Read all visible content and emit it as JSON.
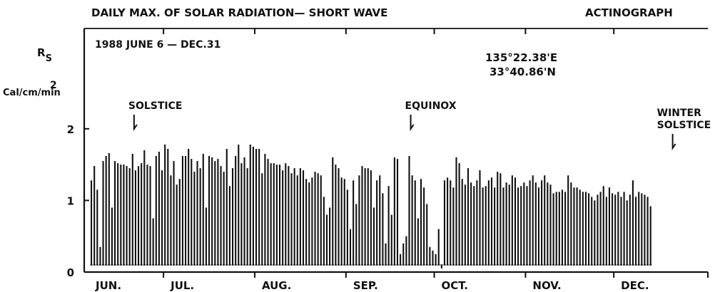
{
  "chart_data": {
    "type": "bar",
    "title": "DAILY MAX. OF SOLAR RADIATION— SHORT WAVE",
    "instrument": "ACTINOGRAPH",
    "period": "1988 JUNE 6 — DEC.31",
    "location": {
      "longitude": "135°22.38'E",
      "latitude": "33°40.86'N"
    },
    "ylabel": {
      "symbol": "R",
      "subscript": "S",
      "unit_main": "Cal/cm",
      "unit_sup": "2",
      "unit_tail": "/min"
    },
    "xlabel": "",
    "ylim": [
      0,
      3.4
    ],
    "yticks": [
      0,
      1,
      2
    ],
    "x_start": "1988-06-06",
    "x_end": "1988-12-31",
    "grid": false,
    "months": [
      {
        "label": "JUN.",
        "start": "1988-06-06"
      },
      {
        "label": "JUL.",
        "start": "1988-07-01"
      },
      {
        "label": "AUG.",
        "start": "1988-08-01"
      },
      {
        "label": "SEP.",
        "start": "1988-09-01"
      },
      {
        "label": "OCT.",
        "start": "1988-10-01"
      },
      {
        "label": "NOV.",
        "start": "1988-11-01"
      },
      {
        "label": "DEC.",
        "start": "1988-12-01"
      }
    ],
    "annotations": [
      {
        "label": "SOLSTICE",
        "date": "1988-06-21"
      },
      {
        "label": "EQUINOX",
        "date": "1988-09-23"
      },
      {
        "label": "WINTER\nSOLSTICE",
        "date": "1988-12-21"
      }
    ],
    "series": [
      {
        "unit": "Cal/cm²/min",
        "values": [
          1.28,
          1.48,
          1.15,
          0.35,
          1.55,
          1.62,
          1.66,
          0.9,
          1.55,
          1.52,
          1.5,
          1.5,
          1.48,
          1.45,
          1.65,
          1.42,
          1.48,
          1.52,
          1.7,
          1.5,
          1.48,
          0.75,
          1.62,
          1.68,
          1.42,
          1.78,
          1.72,
          1.35,
          1.55,
          1.22,
          1.3,
          1.62,
          1.62,
          1.72,
          1.58,
          1.4,
          1.55,
          1.45,
          1.65,
          0.9,
          1.62,
          1.6,
          1.55,
          1.58,
          1.48,
          1.4,
          1.72,
          1.2,
          1.45,
          1.62,
          1.78,
          1.52,
          1.6,
          1.45,
          1.78,
          1.75,
          1.72,
          1.72,
          1.38,
          1.65,
          1.58,
          1.52,
          1.52,
          1.5,
          1.5,
          1.42,
          1.52,
          1.48,
          1.38,
          1.45,
          1.35,
          1.45,
          1.42,
          1.3,
          1.25,
          1.32,
          1.4,
          1.38,
          1.35,
          1.05,
          0.8,
          0.9,
          1.6,
          1.5,
          1.45,
          1.32,
          1.3,
          1.15,
          0.6,
          1.28,
          0.95,
          1.35,
          1.48,
          1.45,
          1.45,
          1.42,
          0.9,
          1.28,
          1.35,
          1.1,
          0.4,
          1.2,
          0.8,
          1.6,
          1.58,
          0.25,
          0.4,
          0.5,
          1.62,
          1.35,
          1.28,
          0.75,
          1.3,
          1.18,
          0.95,
          0.35,
          0.3,
          0.25,
          0.6,
          0.05,
          1.28,
          1.32,
          1.28,
          1.18,
          1.6,
          1.52,
          1.3,
          1.22,
          1.45,
          1.25,
          1.2,
          1.28,
          1.42,
          1.18,
          1.2,
          1.28,
          1.32,
          1.18,
          1.4,
          1.38,
          1.18,
          1.25,
          1.22,
          1.35,
          1.32,
          1.18,
          1.2,
          1.25,
          1.2,
          1.28,
          1.35,
          1.25,
          1.18,
          1.28,
          1.35,
          1.25,
          1.22,
          1.1,
          1.12,
          1.12,
          1.15,
          1.12,
          1.35,
          1.25,
          1.18,
          1.18,
          1.15,
          1.12,
          1.12,
          1.1,
          1.05,
          1.0,
          1.08,
          1.12,
          1.2,
          1.05,
          1.18,
          1.1,
          1.08,
          1.12,
          1.05,
          1.12,
          1.0,
          1.08,
          1.28,
          1.05,
          1.12,
          1.1,
          1.08,
          1.05,
          0.92
        ]
      }
    ]
  }
}
